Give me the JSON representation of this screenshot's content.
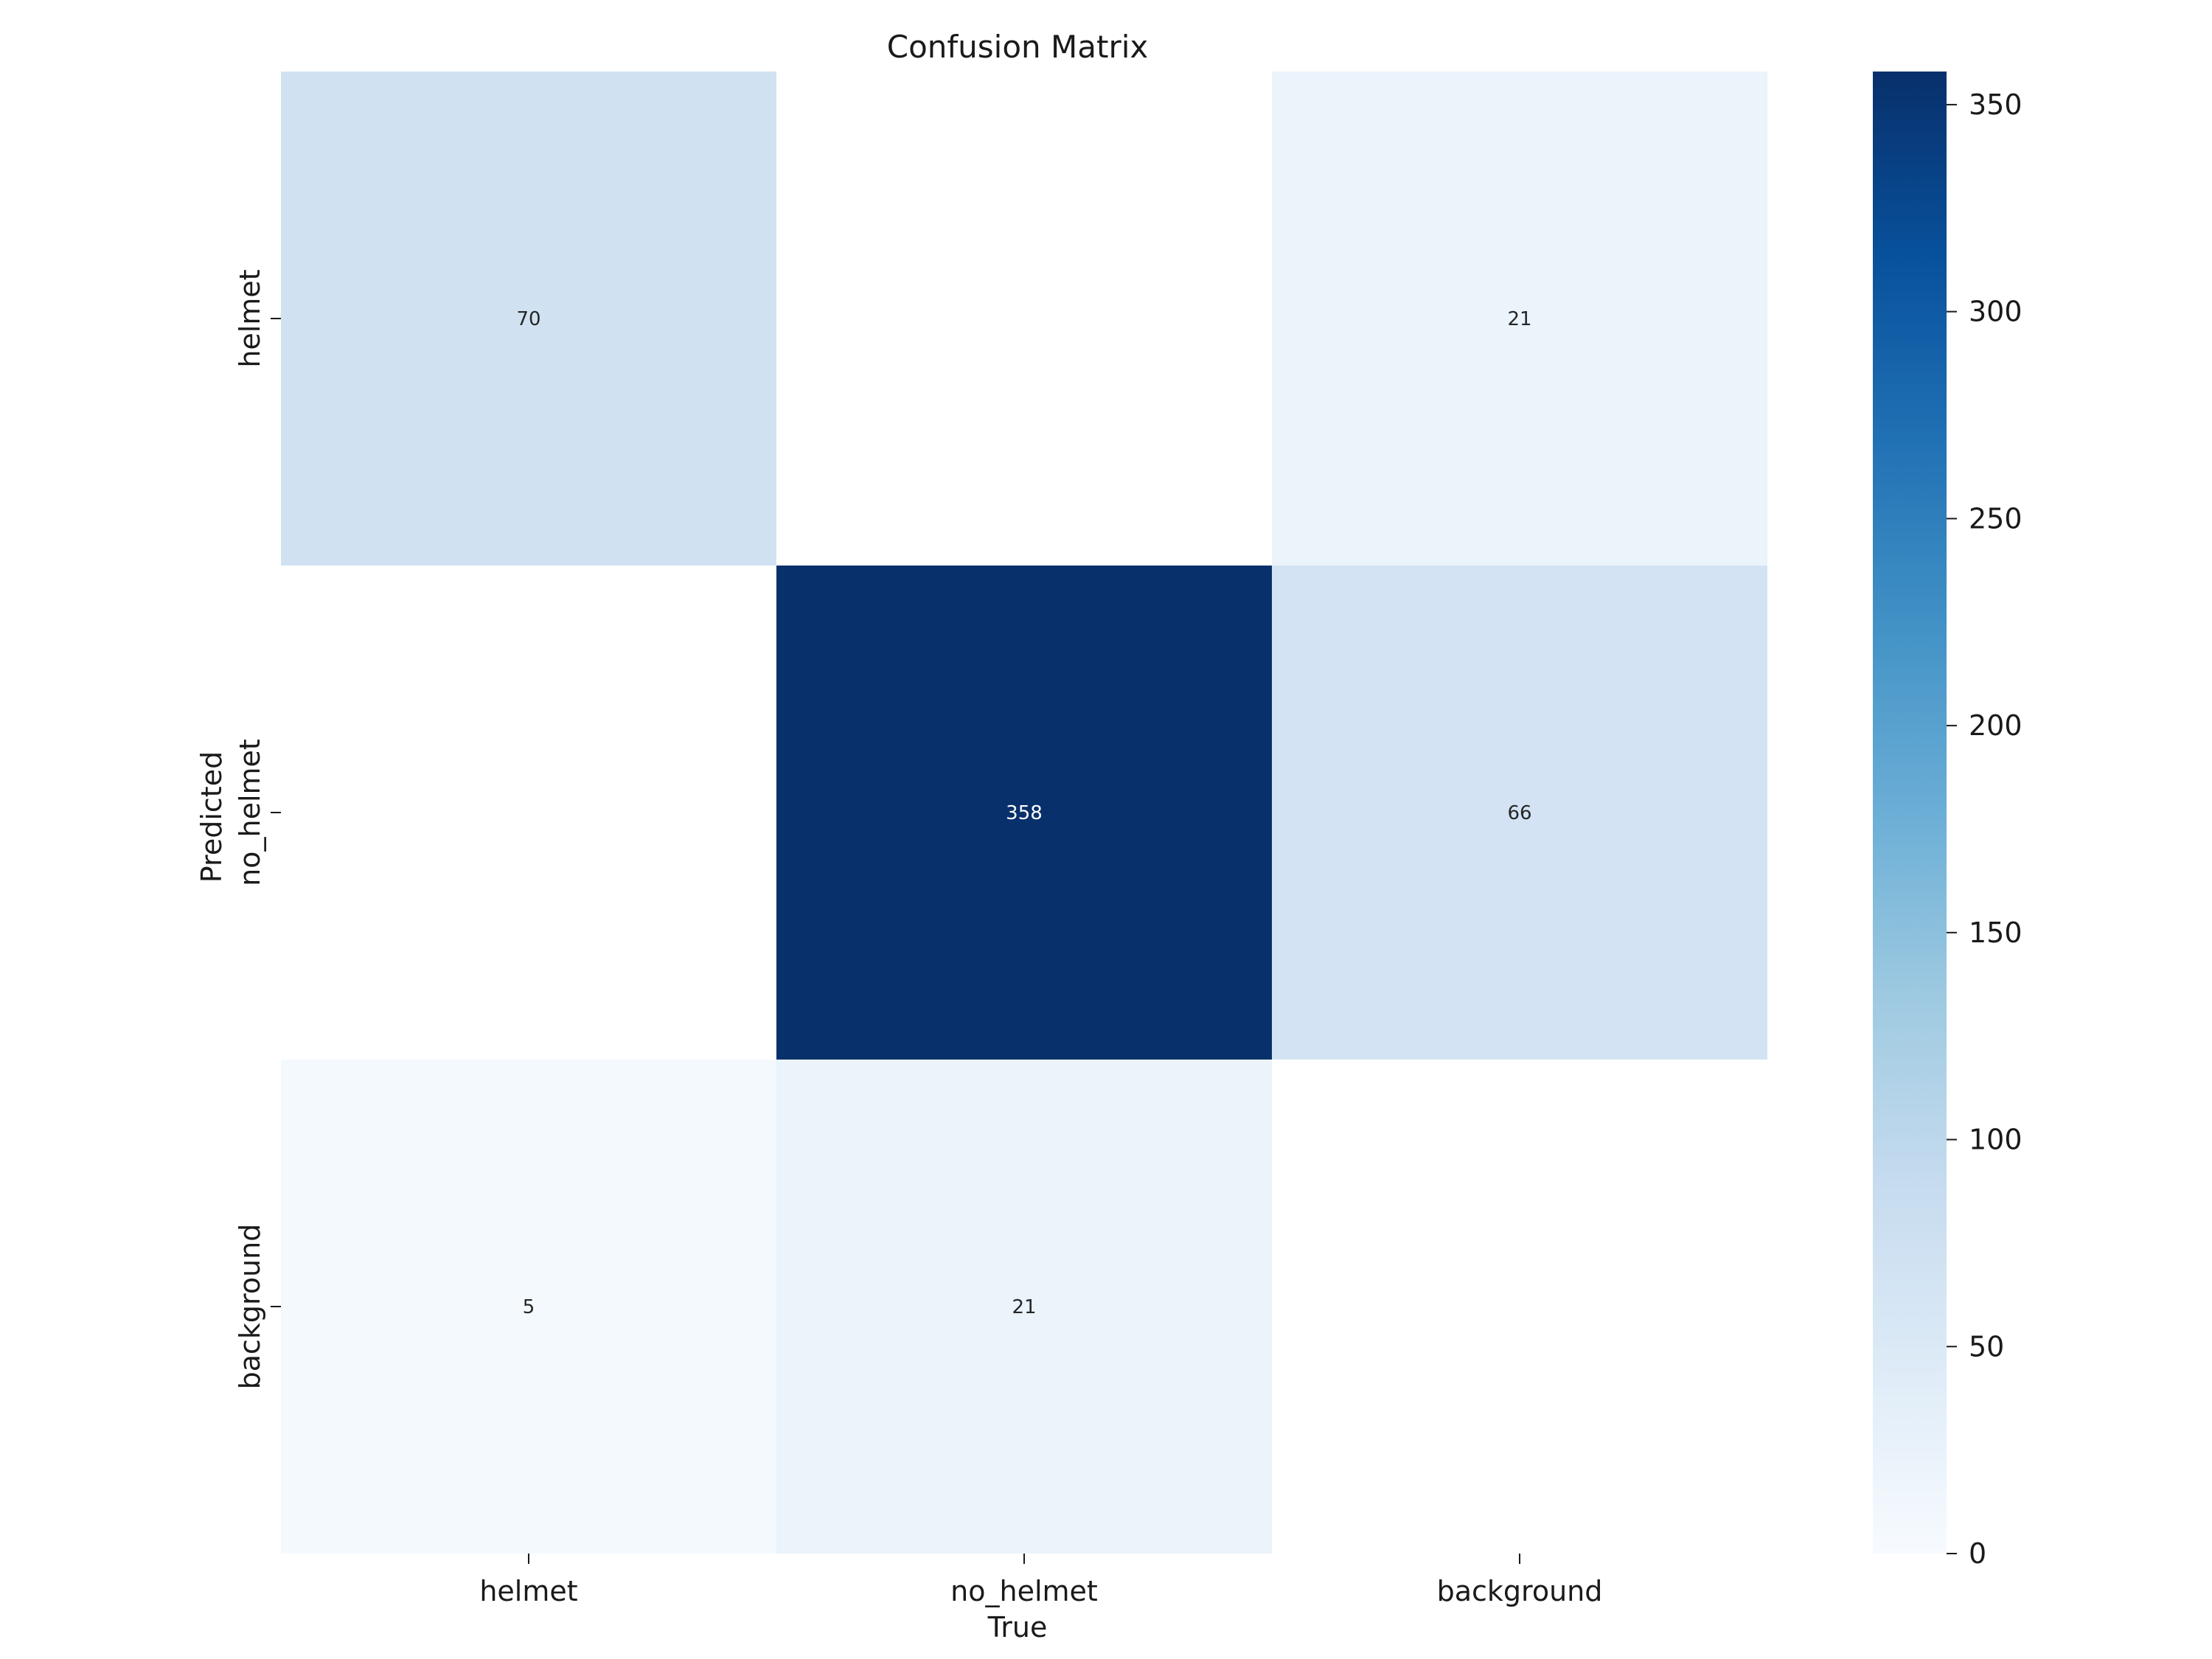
{
  "chart_data": {
    "type": "heatmap",
    "title": "Confusion Matrix",
    "xlabel": "True",
    "ylabel": "Predicted",
    "x_categories": [
      "helmet",
      "no_helmet",
      "background"
    ],
    "y_categories": [
      "helmet",
      "no_helmet",
      "background"
    ],
    "values": [
      [
        70,
        null,
        21
      ],
      [
        null,
        358,
        66
      ],
      [
        5,
        21,
        null
      ]
    ],
    "colormap": "Blues",
    "colorbar": {
      "range": [
        0,
        358
      ],
      "ticks": [
        0,
        50,
        100,
        150,
        200,
        250,
        300,
        350
      ]
    },
    "colors": {
      "low": "#f7fbff",
      "high": "#08306b",
      "empty": "#ffffff"
    }
  }
}
